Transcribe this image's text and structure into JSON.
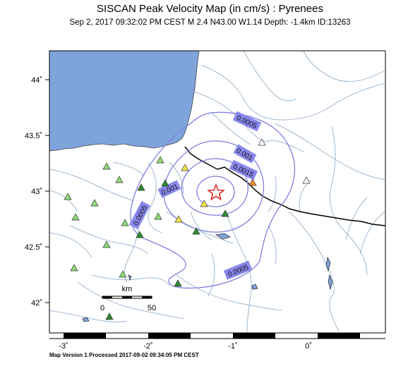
{
  "header": {
    "title": "SISCAN Peak Velocity Map (in cm/s) : Pyrenees",
    "subtitle": "Sep  2, 2017 09:32:02 PM CEST   M 2.4   N43.00 W1.14   Depth: -1.4km   ID:13263"
  },
  "footer": {
    "text": "Map Version 1 Processed 2017-09-02 09:34:05 PM CEST"
  },
  "axes": {
    "y_ticks": [
      "44˚",
      "43.5˚",
      "43˚",
      "42.5˚",
      "42˚"
    ],
    "x_ticks": [
      "-3˚",
      "-2˚",
      "-1˚",
      "0˚"
    ]
  },
  "contours": {
    "labels": [
      "0.0005",
      "0.001",
      "0.0015",
      "0.001",
      "0.0005",
      "0.0005"
    ]
  },
  "scale_bar": {
    "unit": "km",
    "start": "0",
    "end": "50"
  },
  "colors": {
    "sea": "#7fa4dc",
    "land": "#ffffff",
    "rivers": "#9fb8d0",
    "contour": "#7f7fe0",
    "label_bg": "#8888ee",
    "border": "#000000",
    "station_light": "#8edc7a",
    "station_dark": "#2d8a2d",
    "station_yellow": "#f5e94a",
    "station_orange": "#f08a2a",
    "station_empty": "#ffffff",
    "epicenter": "#e02020"
  }
}
